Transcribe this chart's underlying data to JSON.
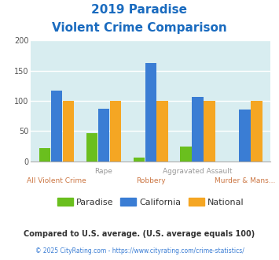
{
  "title_line1": "2019 Paradise",
  "title_line2": "Violent Crime Comparison",
  "categories": [
    "All Violent Crime",
    "Rape",
    "Robbery",
    "Aggravated Assault",
    "Murder & Mans..."
  ],
  "paradise": [
    22,
    46,
    6,
    24,
    0
  ],
  "california": [
    117,
    87,
    162,
    107,
    86
  ],
  "national": [
    100,
    100,
    100,
    100,
    100
  ],
  "color_paradise": "#6abf1e",
  "color_california": "#3a7dd4",
  "color_national": "#f5a623",
  "ylim": [
    0,
    200
  ],
  "yticks": [
    0,
    50,
    100,
    150,
    200
  ],
  "bg_color": "#d8edf0",
  "title_color": "#1a6bbf",
  "cat_top_color": "#999999",
  "cat_bottom_color": "#cc7744",
  "footnote1": "Compared to U.S. average. (U.S. average equals 100)",
  "footnote2": "© 2025 CityRating.com - https://www.cityrating.com/crime-statistics/",
  "footnote1_color": "#333333",
  "footnote2_color": "#3a7dd4",
  "legend_label_color": "#333333"
}
